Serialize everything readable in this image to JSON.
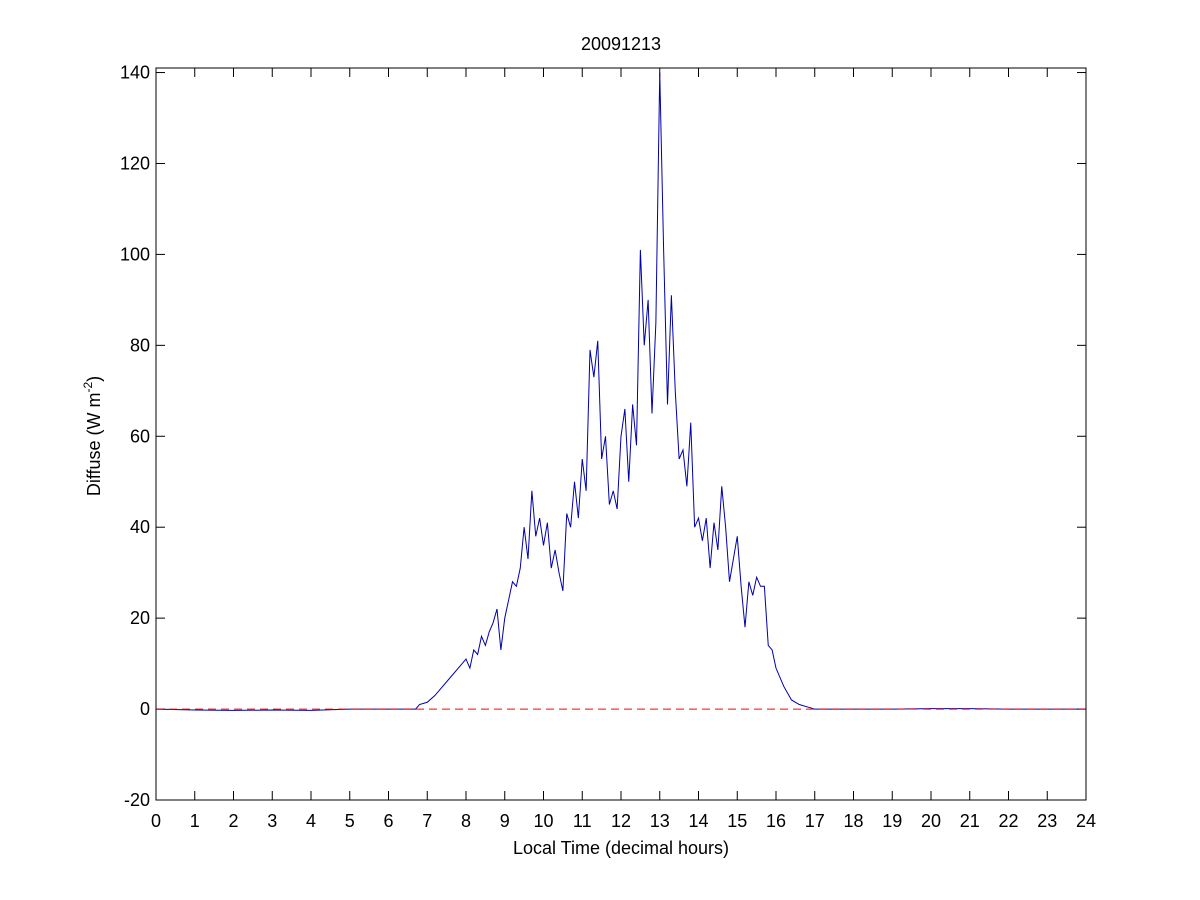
{
  "chart_data": {
    "type": "line",
    "title": "20091213",
    "x_label": "Local Time (decimal hours)",
    "y_label": [
      "Diffuse (W m",
      "-2",
      ")"
    ],
    "x": [
      0,
      1,
      2,
      3,
      4,
      5,
      6,
      6.7,
      6.8,
      7.0,
      7.2,
      7.4,
      7.6,
      7.8,
      8.0,
      8.1,
      8.2,
      8.3,
      8.4,
      8.5,
      8.6,
      8.7,
      8.8,
      8.9,
      9.0,
      9.1,
      9.2,
      9.3,
      9.4,
      9.5,
      9.6,
      9.7,
      9.8,
      9.9,
      10.0,
      10.1,
      10.2,
      10.3,
      10.4,
      10.5,
      10.6,
      10.7,
      10.8,
      10.9,
      11.0,
      11.1,
      11.2,
      11.3,
      11.4,
      11.5,
      11.6,
      11.7,
      11.8,
      11.9,
      12.0,
      12.1,
      12.2,
      12.3,
      12.4,
      12.5,
      12.6,
      12.7,
      12.8,
      12.9,
      13.0,
      13.1,
      13.2,
      13.3,
      13.4,
      13.5,
      13.6,
      13.7,
      13.8,
      13.9,
      14.0,
      14.1,
      14.2,
      14.3,
      14.4,
      14.5,
      14.6,
      14.7,
      14.8,
      14.9,
      15.0,
      15.1,
      15.2,
      15.3,
      15.4,
      15.5,
      15.6,
      15.7,
      15.8,
      15.9,
      16.0,
      16.2,
      16.4,
      16.6,
      16.8,
      17.0,
      17.5,
      18,
      19,
      20,
      21,
      22,
      23,
      24
    ],
    "series": [
      {
        "name": "Diffuse",
        "color": "#0000aa",
        "values": [
          0,
          -0.2,
          -0.3,
          -0.2,
          -0.3,
          0,
          0,
          0,
          1,
          1.5,
          3,
          5,
          7,
          9,
          11,
          9,
          13,
          12,
          16,
          14,
          17,
          19,
          22,
          13,
          20,
          24,
          28,
          27,
          31,
          40,
          33,
          48,
          38,
          42,
          36,
          41,
          31,
          35,
          30,
          26,
          43,
          40,
          50,
          42,
          55,
          48,
          79,
          73,
          81,
          55,
          60,
          45,
          48,
          44,
          60,
          66,
          50,
          67,
          58,
          101,
          80,
          90,
          65,
          85,
          140,
          101,
          67,
          91,
          70,
          55,
          57,
          49,
          63,
          40,
          42,
          37,
          42,
          31,
          41,
          35,
          49,
          40,
          28,
          33,
          38,
          27,
          18,
          28,
          25,
          29,
          27,
          27,
          14,
          13,
          9,
          5,
          2,
          1,
          0.5,
          0,
          0,
          0,
          0,
          0.1,
          0.1,
          0,
          0,
          0
        ]
      }
    ],
    "reference_line": {
      "value": 0,
      "color": "#ff0000",
      "style": "dashed"
    },
    "xlim": [
      0,
      24
    ],
    "ylim": [
      -20,
      141
    ],
    "xticks": [
      0,
      1,
      2,
      3,
      4,
      5,
      6,
      7,
      8,
      9,
      10,
      11,
      12,
      13,
      14,
      15,
      16,
      17,
      18,
      19,
      20,
      21,
      22,
      23,
      24
    ],
    "yticks": [
      -20,
      0,
      20,
      40,
      60,
      80,
      100,
      120,
      140
    ]
  }
}
